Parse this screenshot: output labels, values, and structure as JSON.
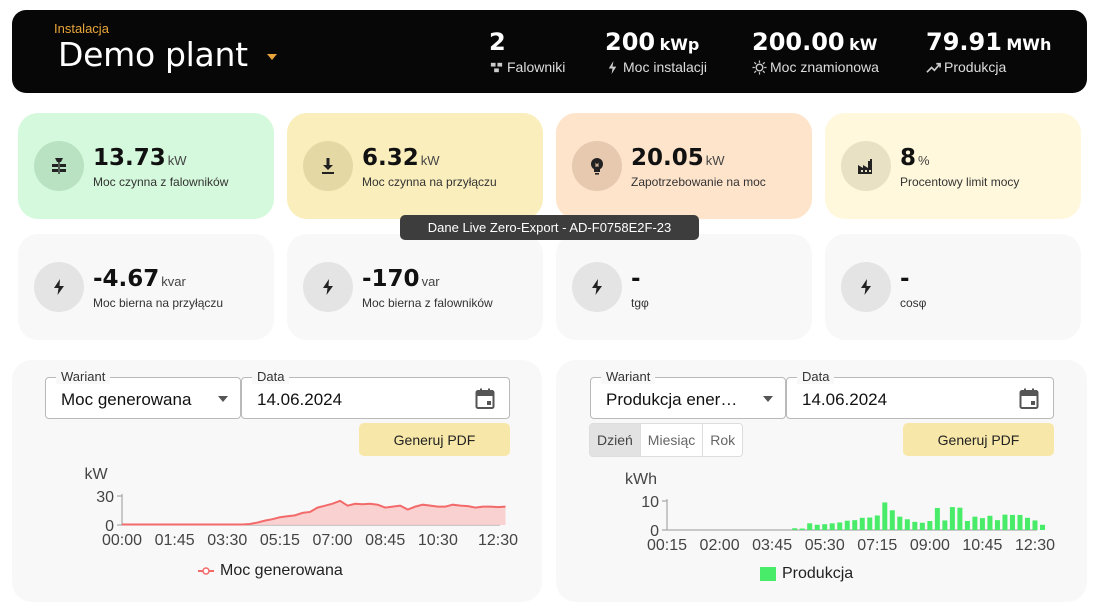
{
  "header": {
    "plant_label": "Instalacja",
    "plant_name": "Demo plant",
    "stats": [
      {
        "value": "2",
        "unit": "",
        "label": "Falowniki",
        "icon": "inverter-icon"
      },
      {
        "value": "200",
        "unit": "kWp",
        "label": "Moc instalacji",
        "icon": "bolt-icon"
      },
      {
        "value": "200.00",
        "unit": "kW",
        "label": "Moc znamionowa",
        "icon": "sun-icon"
      },
      {
        "value": "79.91",
        "unit": "MWh",
        "label": "Produkcja",
        "icon": "trending-up-icon"
      }
    ]
  },
  "cards": [
    {
      "value": "13.73",
      "unit": "kW",
      "label": "Moc czynna z falowników",
      "icon": "solar-panel-icon",
      "bg": "#d5f9dc",
      "icon_bg": "#b9e2c2"
    },
    {
      "value": "6.32",
      "unit": "kW",
      "label": "Moc czynna na przyłączu",
      "icon": "download-icon",
      "bg": "#faeebc",
      "icon_bg": "#e4d8a5"
    },
    {
      "value": "20.05",
      "unit": "kW",
      "label": "Zapotrzebowanie na moc",
      "icon": "lightbulb-icon",
      "bg": "#ffe4cc",
      "icon_bg": "#e6c9af"
    },
    {
      "value": "8",
      "unit": "%",
      "label": "Procentowy limit mocy",
      "icon": "factory-icon",
      "bg": "#fff8dc",
      "icon_bg": "#e9e1c3"
    },
    {
      "value": "-4.67",
      "unit": "kvar",
      "label": "Moc bierna na przyłączu",
      "icon": "bolt-icon",
      "bg": "#f8f8f8",
      "icon_bg": "#e4e4e4"
    },
    {
      "value": "-170",
      "unit": "var",
      "label": "Moc bierna z falowników",
      "icon": "bolt-icon",
      "bg": "#f8f8f8",
      "icon_bg": "#e4e4e4"
    },
    {
      "value": "-",
      "unit": "",
      "label": "tgφ",
      "icon": "bolt-icon",
      "bg": "#f8f8f8",
      "icon_bg": "#e4e4e4"
    },
    {
      "value": "-",
      "unit": "",
      "label": "cosφ",
      "icon": "bolt-icon",
      "bg": "#f8f8f8",
      "icon_bg": "#e4e4e4"
    }
  ],
  "tooltip": "Dane Live Zero-Export - AD-F0758E2F-23",
  "left_panel": {
    "variant_label": "Wariant",
    "variant_value": "Moc generowana",
    "date_label": "Data",
    "date_value": "14.06.2024",
    "pdf_button": "Generuj PDF"
  },
  "right_panel": {
    "variant_label": "Wariant",
    "variant_value": "Produkcja ener…",
    "date_label": "Data",
    "date_value": "14.06.2024",
    "pdf_button": "Generuj PDF",
    "tabs": [
      "Dzień",
      "Miesiąc",
      "Rok"
    ],
    "active_tab": "Dzień"
  },
  "chart_data": [
    {
      "type": "area",
      "ylabel": "kW",
      "ylim": [
        0,
        30
      ],
      "yticks": [
        0,
        30
      ],
      "xticks": [
        "00:00",
        "01:45",
        "03:30",
        "05:15",
        "07:00",
        "08:45",
        "10:30",
        "12:30"
      ],
      "legend_position": "bottom",
      "color": "#f26a6a",
      "fill": "#f9cccc",
      "series": [
        {
          "name": "Moc generowana",
          "x": [
            "00:00",
            "00:30",
            "01:00",
            "01:30",
            "02:00",
            "02:30",
            "03:00",
            "03:30",
            "04:00",
            "04:15",
            "04:30",
            "04:45",
            "05:00",
            "05:15",
            "05:30",
            "05:45",
            "06:00",
            "06:15",
            "06:30",
            "06:45",
            "07:00",
            "07:15",
            "07:30",
            "07:45",
            "08:00",
            "08:15",
            "08:30",
            "08:45",
            "09:00",
            "09:15",
            "09:30",
            "09:45",
            "10:00",
            "10:15",
            "10:30",
            "10:45",
            "11:00",
            "11:15",
            "11:30",
            "11:45",
            "12:00",
            "12:15",
            "12:30",
            "12:45"
          ],
          "values": [
            0.5,
            0.5,
            0.5,
            0.5,
            0.5,
            0.5,
            0.5,
            0.5,
            0.5,
            1,
            2.5,
            4.5,
            6,
            8,
            9,
            10,
            12.5,
            13.5,
            18,
            20,
            22,
            25,
            20,
            22,
            21.5,
            22,
            21,
            18,
            19,
            20,
            16,
            19,
            21,
            20,
            19,
            19,
            21,
            20,
            19.5,
            18,
            19,
            19,
            18.5,
            19
          ]
        }
      ]
    },
    {
      "type": "bar",
      "ylabel": "kWh",
      "ylim": [
        0,
        10
      ],
      "yticks": [
        0,
        10
      ],
      "xticks": [
        "00:15",
        "02:00",
        "03:45",
        "05:30",
        "07:15",
        "09:00",
        "10:45",
        "12:30"
      ],
      "legend_position": "bottom",
      "color": "#48ec68",
      "series": [
        {
          "name": "Produkcja",
          "x": [
            "04:30",
            "04:45",
            "05:00",
            "05:15",
            "05:30",
            "05:45",
            "06:00",
            "06:15",
            "06:30",
            "06:45",
            "07:00",
            "07:15",
            "07:30",
            "07:45",
            "08:00",
            "08:15",
            "08:30",
            "08:45",
            "09:00",
            "09:15",
            "09:30",
            "09:45",
            "10:00",
            "10:15",
            "10:30",
            "10:45",
            "11:00",
            "11:15",
            "11:30",
            "11:45",
            "12:00",
            "12:15",
            "12:30",
            "12:45"
          ],
          "values": [
            0.6,
            0.5,
            2.3,
            1.8,
            2.0,
            2.3,
            2.6,
            3.2,
            3.4,
            4.2,
            4.3,
            5.0,
            9.5,
            6.8,
            4.6,
            3.7,
            2.8,
            2.5,
            3.1,
            7.6,
            3.3,
            7.9,
            7.7,
            3.1,
            4.6,
            4.1,
            4.9,
            3.4,
            5.3,
            5.2,
            5.2,
            4.2,
            3.3,
            1.8
          ]
        }
      ]
    }
  ]
}
